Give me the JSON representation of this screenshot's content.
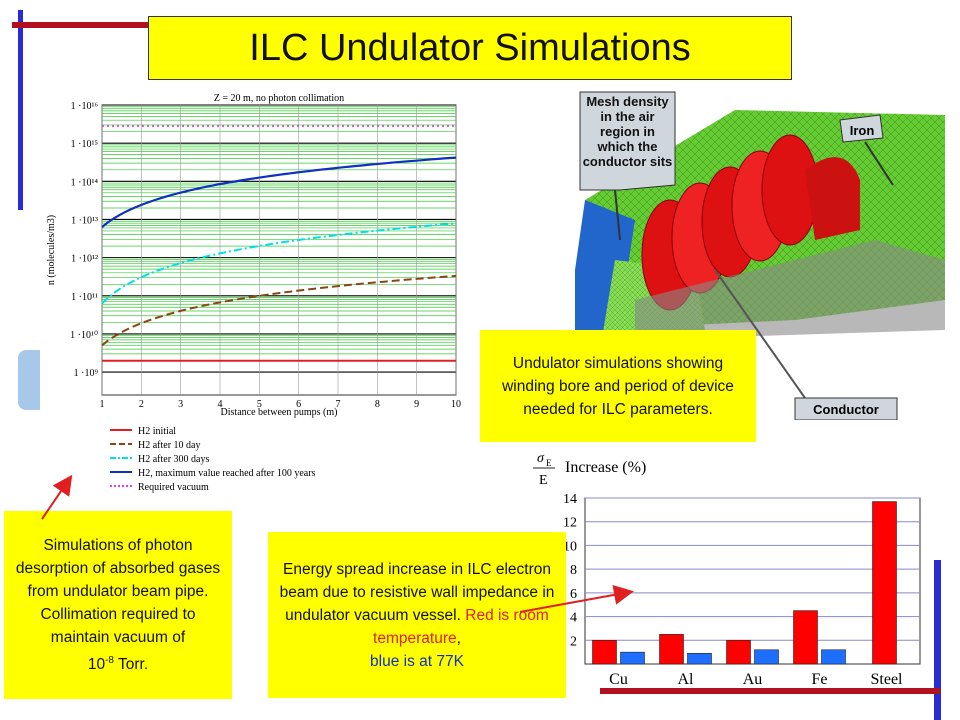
{
  "title": "ILC Undulator Simulations",
  "plot": {
    "heading": "Z = 20 m, no photon collimation",
    "ylabel": "n (molecules/m3)",
    "xlabel": "Distance between pumps (m)",
    "y_ticks": [
      "1 ·10¹⁶",
      "1 ·10¹⁵",
      "1 ·10¹⁴",
      "1 ·10¹³",
      "1 ·10¹²",
      "1 ·10¹¹",
      "1 ·10¹⁰",
      "1 ·10⁹"
    ],
    "x_ticks": [
      "1",
      "2",
      "3",
      "4",
      "5",
      "6",
      "7",
      "8",
      "9",
      "10"
    ],
    "legend": [
      {
        "label": "H2 initial",
        "color": "#e02020",
        "style": "solid"
      },
      {
        "label": "H2 after 10 day",
        "color": "#8b4513",
        "style": "dash"
      },
      {
        "label": "H2 after 300 days",
        "color": "#00e0e0",
        "style": "dashdot"
      },
      {
        "label": "H2, maximum value reached after 100 years",
        "color": "#1030c0",
        "style": "solid"
      },
      {
        "label": "Required vacuum",
        "color": "#e040e0",
        "style": "dot"
      }
    ]
  },
  "chart_data": {
    "type": "bar",
    "title": "Increase (%)",
    "categories": [
      "Cu",
      "Al",
      "Au",
      "Fe",
      "Steel"
    ],
    "ylim": [
      0,
      14
    ],
    "y_ticks": [
      "14",
      "12",
      "10",
      "8",
      "6",
      "4",
      "2"
    ],
    "series": [
      {
        "color": "#ff0000",
        "values": [
          2.0,
          2.5,
          2.0,
          4.5,
          13.7
        ]
      },
      {
        "color": "#1e6fff",
        "values": [
          1.0,
          0.9,
          1.2,
          1.2,
          0
        ]
      }
    ],
    "sigma_label": "σ",
    "sigma_sub": "E",
    "denominator": "E"
  },
  "mesh": {
    "label_mesh": "Mesh density in the air region in which the conductor sits",
    "label_iron": "Iron",
    "label_conductor": "Conductor"
  },
  "callouts": {
    "undulator": "Undulator simulations showing winding bore and period of device needed for ILC parameters.",
    "sim_text": "Simulations of photon desorption of absorbed gases from undulator beam pipe. Collimation required to maintain vacuum of",
    "sim_power_base": "10",
    "sim_power_exp": "-8",
    "sim_unit": "Torr.",
    "energy_main": "Energy spread increase in ILC electron beam due to resistive wall impedance in undulator vacuum vessel.",
    "energy_red": "Red is room temperature",
    "energy_comma": ",",
    "energy_blue": "blue is at 77K"
  },
  "colors": {
    "yellow": "#ffff00",
    "accent_red": "#b01020",
    "accent_blue": "#2b2bd6"
  }
}
